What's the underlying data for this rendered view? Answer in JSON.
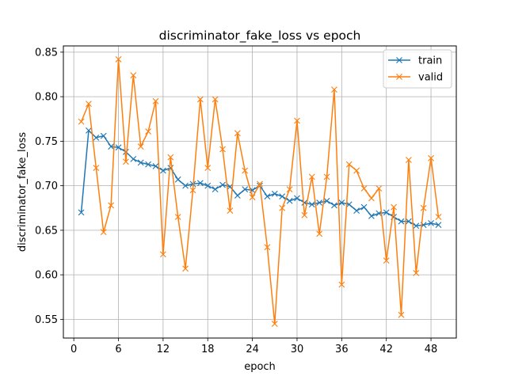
{
  "chart_data": {
    "type": "line",
    "title": "discriminator_fake_loss vs epoch",
    "xlabel": "epoch",
    "ylabel": "discriminator_fake_loss",
    "xlim": [
      -1.4,
      51.4
    ],
    "ylim": [
      0.529,
      0.857
    ],
    "xticks": [
      0,
      6,
      12,
      18,
      24,
      30,
      36,
      42,
      48
    ],
    "yticks": [
      0.55,
      0.6,
      0.65,
      0.7,
      0.75,
      0.8,
      0.85
    ],
    "grid": true,
    "legend_position": "top-right",
    "x": [
      1,
      2,
      3,
      4,
      5,
      6,
      7,
      8,
      9,
      10,
      11,
      12,
      13,
      14,
      15,
      16,
      17,
      18,
      19,
      20,
      21,
      22,
      23,
      24,
      25,
      26,
      27,
      28,
      29,
      30,
      31,
      32,
      33,
      34,
      35,
      36,
      37,
      38,
      39,
      40,
      41,
      42,
      43,
      44,
      45,
      46,
      47,
      48,
      49
    ],
    "series": [
      {
        "name": "train",
        "color": "#1f77b4",
        "marker": "x",
        "values": [
          0.67,
          0.762,
          0.754,
          0.756,
          0.744,
          0.743,
          0.738,
          0.73,
          0.726,
          0.724,
          0.722,
          0.717,
          0.72,
          0.707,
          0.7,
          0.702,
          0.703,
          0.7,
          0.696,
          0.701,
          0.699,
          0.689,
          0.696,
          0.695,
          0.7,
          0.688,
          0.691,
          0.688,
          0.683,
          0.686,
          0.681,
          0.679,
          0.681,
          0.683,
          0.678,
          0.681,
          0.679,
          0.672,
          0.676,
          0.666,
          0.669,
          0.67,
          0.665,
          0.66,
          0.66,
          0.655,
          0.656,
          0.658,
          0.656
        ]
      },
      {
        "name": "valid",
        "color": "#ff7f0e",
        "marker": "x",
        "values": [
          0.772,
          0.792,
          0.72,
          0.648,
          0.678,
          0.842,
          0.727,
          0.824,
          0.744,
          0.761,
          0.795,
          0.623,
          0.732,
          0.665,
          0.607,
          0.695,
          0.797,
          0.72,
          0.797,
          0.741,
          0.672,
          0.759,
          0.717,
          0.687,
          0.702,
          0.631,
          0.545,
          0.675,
          0.696,
          0.773,
          0.667,
          0.71,
          0.646,
          0.71,
          0.808,
          0.589,
          0.724,
          0.717,
          0.697,
          0.686,
          0.697,
          0.616,
          0.676,
          0.555,
          0.729,
          0.602,
          0.675,
          0.731,
          0.665
        ]
      }
    ]
  }
}
